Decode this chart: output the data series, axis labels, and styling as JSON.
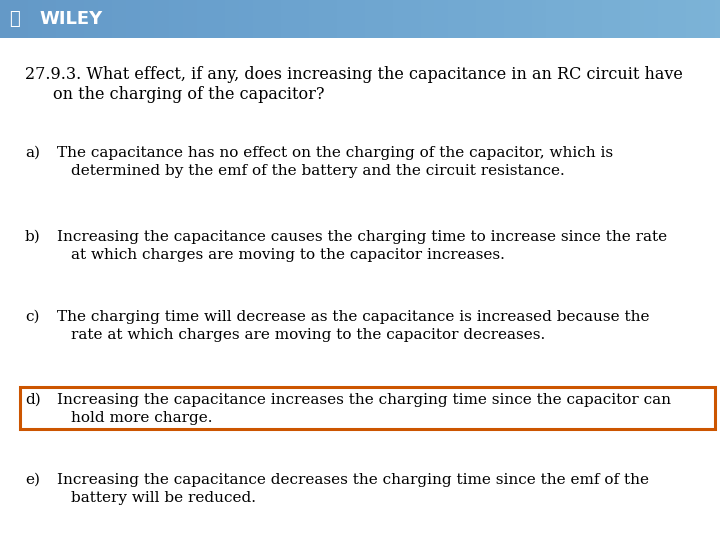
{
  "header_bg_color": "#2e4a6a",
  "header_text": "WILEY",
  "body_bg_color": "#ffffff",
  "question_line1": "27.9.3. What effect, if any, does increasing the capacitance in an RC circuit have",
  "question_line2": "   on the charging of the capacitor?",
  "options": [
    {
      "label": "a)",
      "line1": "The capacitance has no effect on the charging of the capacitor, which is",
      "line2": "   determined by the emf of the battery and the circuit resistance.",
      "highlighted": false
    },
    {
      "label": "b)",
      "line1": "Increasing the capacitance causes the charging time to increase since the rate",
      "line2": "   at which charges are moving to the capacitor increases.",
      "highlighted": false
    },
    {
      "label": "c)",
      "line1": "The charging time will decrease as the capacitance is increased because the",
      "line2": "   rate at which charges are moving to the capacitor decreases.",
      "highlighted": false
    },
    {
      "label": "d)",
      "line1": "Increasing the capacitance increases the charging time since the capacitor can",
      "line2": "   hold more charge.",
      "highlighted": true
    },
    {
      "label": "e)",
      "line1": "Increasing the capacitance decreases the charging time since the emf of the",
      "line2": "   battery will be reduced.",
      "highlighted": false
    }
  ],
  "highlight_color": "#cc5500",
  "font_size": 11.0,
  "text_color": "#000000"
}
